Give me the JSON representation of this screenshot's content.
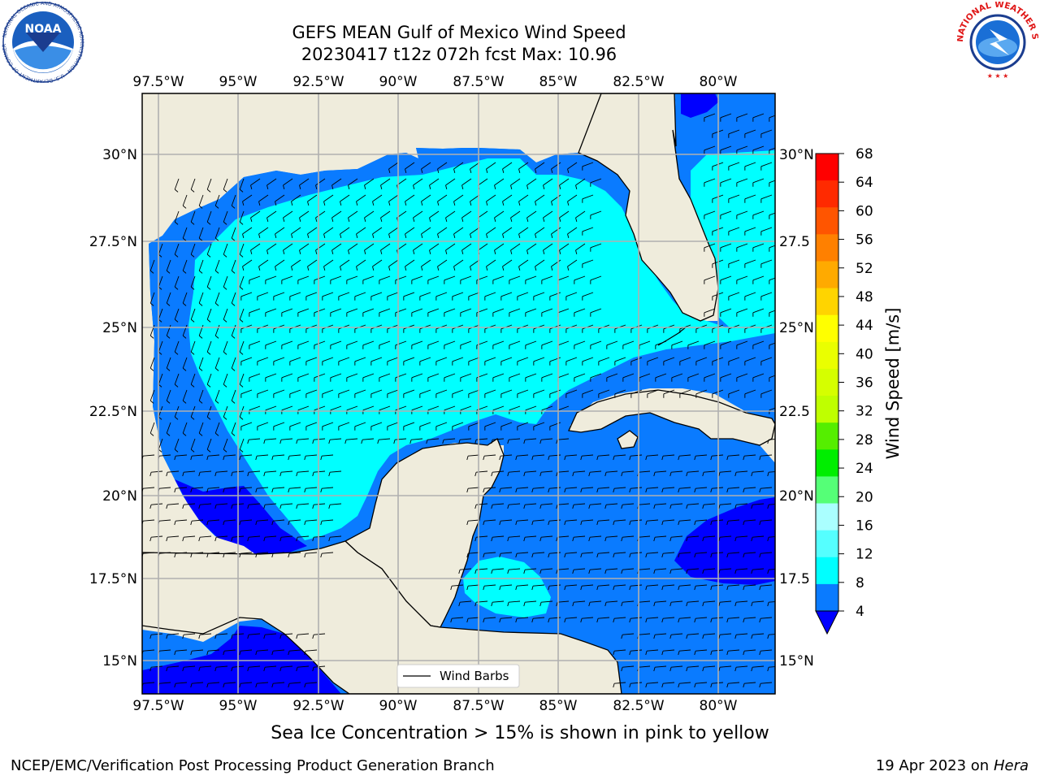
{
  "header": {
    "title_line1": "GEFS MEAN Gulf of Mexico Wind Speed",
    "title_line2": "20230417 t12z 072h fcst   Max: 10.96"
  },
  "logos": {
    "left": {
      "text": "NOAA",
      "ring_text": "NATIONAL OCEANIC AND ATMOSPHERIC ADMINISTRATION · U.S. DEPARTMENT OF COMMERCE",
      "icon": "noaa-logo"
    },
    "right": {
      "ring_text": "NATIONAL WEATHER SERVICE",
      "icon": "nws-logo"
    }
  },
  "map": {
    "lon_labels": [
      "97.5°W",
      "95°W",
      "92.5°W",
      "90°W",
      "87.5°W",
      "85°W",
      "82.5°W",
      "80°W"
    ],
    "lat_labels_left": [
      "30°N",
      "27.5°N",
      "25°N",
      "22.5°N",
      "20°N",
      "17.5°N",
      "15°N"
    ],
    "lat_labels_right": [
      "30°N",
      "27.5",
      "25°N",
      "22.5",
      "20°N",
      "17.5",
      "15°N"
    ],
    "legend_label": "Wind Barbs",
    "colors": {
      "land": "#efecdc",
      "ocean_4_8": "#0a7bff",
      "ocean_8_12": "#00ffff",
      "ocean_lt4": "#0000ff",
      "grid": "#b0b0b0"
    }
  },
  "colorbar": {
    "label": "Wind Speed [m/s]",
    "ticks": [
      "68",
      "64",
      "60",
      "56",
      "52",
      "48",
      "44",
      "40",
      "36",
      "32",
      "28",
      "24",
      "20",
      "16",
      "12",
      "8",
      "4"
    ],
    "colors": [
      "#ff0000",
      "#ff2a00",
      "#ff5500",
      "#ff8000",
      "#ffaa00",
      "#ffd400",
      "#ffff00",
      "#eaff00",
      "#d5ff00",
      "#bfff00",
      "#55ee00",
      "#00ee00",
      "#55ff77",
      "#aaffff",
      "#55ffff",
      "#00ffff",
      "#0a7bff"
    ],
    "under_color": "#0000ff"
  },
  "subtitle": "Sea Ice Concentration > 15% is shown in pink to yellow",
  "footer": {
    "left": "NCEP/EMC/Verification Post Processing Product Generation Branch",
    "right_date": "19 Apr 2023 on ",
    "right_machine": "Hera"
  }
}
